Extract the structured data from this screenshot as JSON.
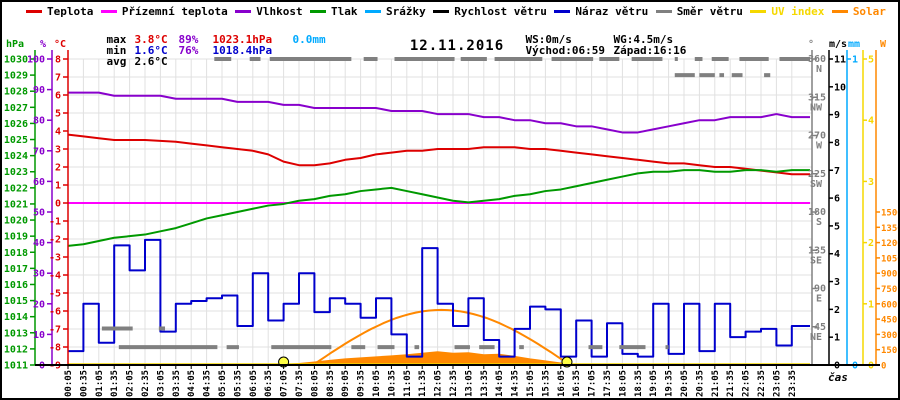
{
  "title": "12.11.2016",
  "xlabel": "čas",
  "palette": {
    "temp": "#dd0000",
    "ground": "#ff00ff",
    "hum": "#8800cc",
    "pres": "#009900",
    "rain": "#00aaff",
    "wind": "#000000",
    "gust": "#0000cc",
    "dir": "#808080",
    "uv": "#f5d800",
    "solar": "#ff8800",
    "black": "#000000",
    "min": "#0000cc",
    "grid": "#e0e0e0",
    "sun_marker": "#ffff44"
  },
  "legend": {
    "items": [
      {
        "label": "Teplota",
        "color": "#dd0000",
        "label_color": "#000000"
      },
      {
        "label": "Přízemní teplota",
        "color": "#ff00ff",
        "label_color": "#000000"
      },
      {
        "label": "Vlhkost",
        "color": "#8800cc",
        "label_color": "#000000"
      },
      {
        "label": "Tlak",
        "color": "#009900",
        "label_color": "#000000"
      },
      {
        "label": "Srážky",
        "color": "#00aaff",
        "label_color": "#000000"
      },
      {
        "label": "Rychlost větru",
        "color": "#000000",
        "label_color": "#000000"
      },
      {
        "label": "Náraz větru",
        "color": "#0000cc",
        "label_color": "#000000"
      },
      {
        "label": "Směr větru",
        "color": "#808080",
        "label_color": "#000000"
      },
      {
        "label": "UV index",
        "color": "#f5d800",
        "label_color": "#f5d800"
      },
      {
        "label": "Solar",
        "color": "#ff8800",
        "label_color": "#ff8800"
      }
    ]
  },
  "stats": {
    "max_label": "max",
    "max_temp": "3.8°C",
    "max_hum": "89%",
    "max_pres": "1023.1hPa",
    "rain_total": "0.0mm",
    "min_label": "min",
    "min_temp": "1.6°C",
    "min_hum": "76%",
    "min_pres": "1018.4hPa",
    "avg_label": "avg",
    "avg_temp": "2.6°C",
    "ws": "WS:0m/s",
    "wg": "WG:4.5m/s",
    "sunrise": "Východ:06:59",
    "sunset": "Západ:16:16"
  },
  "chart_data": {
    "type": "line",
    "title": "12.11.2016",
    "x_axis": {
      "label": "čas",
      "tick_labels": [
        "00:05",
        "00:35",
        "01:05",
        "01:35",
        "02:05",
        "02:35",
        "03:05",
        "03:35",
        "04:05",
        "04:35",
        "05:05",
        "05:35",
        "06:05",
        "06:35",
        "07:05",
        "07:35",
        "08:05",
        "08:35",
        "09:05",
        "09:35",
        "10:05",
        "10:35",
        "11:05",
        "11:35",
        "12:05",
        "12:35",
        "13:05",
        "13:35",
        "14:05",
        "14:35",
        "15:05",
        "15:35",
        "16:05",
        "16:35",
        "17:05",
        "17:35",
        "18:05",
        "18:35",
        "19:05",
        "19:35",
        "20:05",
        "20:35",
        "21:05",
        "21:35",
        "22:05",
        "22:35",
        "23:05",
        "23:35"
      ]
    },
    "axes": {
      "pressure": {
        "label": "hPa",
        "color": "#009900",
        "min": 1011,
        "max": 1030,
        "ticks": [
          1030,
          1029,
          1028,
          1027,
          1026,
          1025,
          1024,
          1023,
          1022,
          1021,
          1020,
          1019,
          1018,
          1017,
          1016,
          1015,
          1014,
          1013,
          1012,
          1011
        ]
      },
      "humidity": {
        "label": "%",
        "color": "#8800cc",
        "min": 0,
        "max": 100,
        "ticks": [
          100,
          90,
          80,
          70,
          60,
          50,
          40,
          30,
          20,
          10,
          0
        ]
      },
      "temperature": {
        "label": "°C",
        "color": "#dd0000",
        "min": -9,
        "max": 8,
        "ticks": [
          8,
          7,
          6,
          5,
          4,
          3,
          2,
          1,
          0,
          -1,
          -2,
          -3,
          -4,
          -5,
          -6,
          -7,
          -8,
          -9
        ]
      },
      "direction": {
        "label": "°",
        "color": "#808080",
        "min": 0,
        "max": 360,
        "ticks": [
          {
            "deg": 360,
            "name": "N"
          },
          {
            "deg": 315,
            "name": "NW"
          },
          {
            "deg": 270,
            "name": "W"
          },
          {
            "deg": 225,
            "name": "SW"
          },
          {
            "deg": 180,
            "name": "S"
          },
          {
            "deg": 135,
            "name": "SE"
          },
          {
            "deg": 90,
            "name": "E"
          },
          {
            "deg": 45,
            "name": "NE"
          }
        ]
      },
      "wind": {
        "label": "m/s",
        "color": "#000000",
        "min": 0,
        "max": 11,
        "ticks": [
          11,
          10,
          9,
          8,
          7,
          6,
          5,
          4,
          3,
          2,
          1,
          0
        ]
      },
      "rain": {
        "label": "mm",
        "color": "#00aaff",
        "min": 0,
        "max": 1,
        "ticks": [
          1,
          0
        ]
      },
      "uv": {
        "label": "UV",
        "color": "#f5d800",
        "min": 0,
        "max": 5,
        "ticks": [
          5,
          4,
          3,
          2,
          1,
          0
        ]
      },
      "solar": {
        "label": "W",
        "color": "#ff8800",
        "min": 0,
        "max": 3000,
        "ticks": [
          1500,
          1350,
          1200,
          1050,
          900,
          750,
          600,
          450,
          300,
          150,
          0
        ]
      }
    },
    "series": [
      {
        "name": "Teplota",
        "unit": "°C",
        "axis": "temp",
        "color": "#dd0000",
        "style": "line",
        "values": [
          3.8,
          3.7,
          3.6,
          3.5,
          3.5,
          3.5,
          3.45,
          3.4,
          3.3,
          3.2,
          3.1,
          3.0,
          2.9,
          2.7,
          2.3,
          2.1,
          2.1,
          2.2,
          2.4,
          2.5,
          2.7,
          2.8,
          2.9,
          2.9,
          3.0,
          3.0,
          3.0,
          3.1,
          3.1,
          3.1,
          3.0,
          3.0,
          2.9,
          2.8,
          2.7,
          2.6,
          2.5,
          2.4,
          2.3,
          2.2,
          2.2,
          2.1,
          2.0,
          2.0,
          1.9,
          1.8,
          1.7,
          1.6
        ]
      },
      {
        "name": "Přízemní teplota",
        "unit": "°C",
        "axis": "temp",
        "color": "#ff00ff",
        "style": "line",
        "values": [
          0,
          0,
          0,
          0,
          0,
          0,
          0,
          0,
          0,
          0,
          0,
          0,
          0,
          0,
          0,
          0,
          0,
          0,
          0,
          0,
          0,
          0,
          0,
          0,
          0,
          0,
          0,
          0,
          0,
          0,
          0,
          0,
          0,
          0,
          0,
          0,
          0,
          0,
          0,
          0,
          0,
          0,
          0,
          0,
          0,
          0,
          0,
          0
        ]
      },
      {
        "name": "Vlhkost",
        "unit": "%",
        "axis": "hum",
        "color": "#8800cc",
        "style": "line",
        "values": [
          89,
          89,
          89,
          88,
          88,
          88,
          88,
          87,
          87,
          87,
          87,
          86,
          86,
          86,
          85,
          85,
          84,
          84,
          84,
          84,
          84,
          83,
          83,
          83,
          82,
          82,
          82,
          81,
          81,
          80,
          80,
          79,
          79,
          78,
          78,
          77,
          76,
          76,
          77,
          78,
          79,
          80,
          80,
          81,
          81,
          81,
          82,
          81
        ]
      },
      {
        "name": "Tlak",
        "unit": "hPa",
        "axis": "pres",
        "color": "#009900",
        "style": "line",
        "values": [
          1018.4,
          1018.5,
          1018.7,
          1018.9,
          1019.0,
          1019.1,
          1019.3,
          1019.5,
          1019.8,
          1020.1,
          1020.3,
          1020.5,
          1020.7,
          1020.9,
          1021.0,
          1021.2,
          1021.3,
          1021.5,
          1021.6,
          1021.8,
          1021.9,
          1022.0,
          1021.8,
          1021.6,
          1021.4,
          1021.2,
          1021.1,
          1021.2,
          1021.3,
          1021.5,
          1021.6,
          1021.8,
          1021.9,
          1022.1,
          1022.3,
          1022.5,
          1022.7,
          1022.9,
          1023.0,
          1023.0,
          1023.1,
          1023.1,
          1023.0,
          1023.0,
          1023.1,
          1023.1,
          1023.0,
          1023.1
        ]
      },
      {
        "name": "Srážky",
        "unit": "mm",
        "axis": "mm",
        "color": "#00aaff",
        "style": "line",
        "values": [
          0,
          0,
          0,
          0,
          0,
          0,
          0,
          0,
          0,
          0,
          0,
          0,
          0,
          0,
          0,
          0,
          0,
          0,
          0,
          0,
          0,
          0,
          0,
          0,
          0,
          0,
          0,
          0,
          0,
          0,
          0,
          0,
          0,
          0,
          0,
          0,
          0,
          0,
          0,
          0,
          0,
          0,
          0,
          0,
          0,
          0,
          0,
          0
        ]
      },
      {
        "name": "Rychlost větru",
        "unit": "m/s",
        "axis": "wind",
        "color": "#000000",
        "style": "line",
        "values": [
          0,
          0,
          0,
          0,
          0,
          0,
          0,
          0,
          0,
          0,
          0,
          0,
          0,
          0,
          0,
          0,
          0,
          0,
          0,
          0,
          0,
          0,
          0,
          0,
          0,
          0,
          0,
          0,
          0,
          0,
          0,
          0,
          0,
          0,
          0,
          0,
          0,
          0,
          0,
          0,
          0,
          0,
          0,
          0,
          0,
          0,
          0,
          0
        ]
      },
      {
        "name": "Náraz větru",
        "unit": "m/s",
        "axis": "wind",
        "color": "#0000cc",
        "style": "step",
        "values": [
          0.5,
          2.2,
          0.8,
          4.3,
          3.4,
          4.5,
          1.2,
          2.2,
          2.3,
          2.4,
          2.5,
          1.4,
          3.3,
          1.6,
          2.2,
          3.3,
          1.9,
          2.4,
          2.2,
          1.7,
          2.4,
          1.1,
          0.3,
          4.2,
          2.2,
          1.4,
          2.4,
          0.9,
          0.3,
          1.3,
          2.1,
          2.0,
          0.3,
          1.6,
          0.3,
          1.5,
          0.4,
          0.3,
          2.2,
          0.4,
          2.2,
          0.5,
          2.2,
          1.0,
          1.2,
          1.3,
          0.7,
          1.4
        ]
      },
      {
        "name": "UV index",
        "unit": "",
        "axis": "uv",
        "color": "#f5d800",
        "style": "line",
        "values": [
          0,
          0,
          0,
          0,
          0,
          0,
          0,
          0,
          0,
          0,
          0,
          0,
          0,
          0,
          0,
          0,
          0,
          0,
          0,
          0,
          0,
          0,
          0,
          0,
          0,
          0,
          0,
          0,
          0,
          0,
          0,
          0,
          0,
          0,
          0,
          0,
          0,
          0,
          0,
          0,
          0,
          0,
          0,
          0,
          0,
          0,
          0,
          0
        ]
      },
      {
        "name": "Solar",
        "unit": "W",
        "axis": "solar",
        "color": "#ff8800",
        "style": "area",
        "values": [
          0,
          0,
          0,
          0,
          0,
          0,
          0,
          0,
          0,
          0,
          0,
          0,
          0,
          0,
          5,
          15,
          30,
          45,
          60,
          70,
          80,
          90,
          100,
          115,
          130,
          115,
          120,
          100,
          105,
          85,
          60,
          40,
          20,
          5,
          0,
          0,
          0,
          0,
          0,
          0,
          0,
          0,
          0,
          0,
          0,
          0,
          0,
          0
        ]
      }
    ],
    "wind_direction": {
      "name": "Směr větru",
      "color": "#808080",
      "segments": [
        {
          "deg": 360,
          "from": 9.5,
          "to": 10.6
        },
        {
          "deg": 360,
          "from": 11.8,
          "to": 12.5
        },
        {
          "deg": 360,
          "from": 13.1,
          "to": 18.4
        },
        {
          "deg": 360,
          "from": 19.2,
          "to": 20.1
        },
        {
          "deg": 360,
          "from": 21.2,
          "to": 25.1
        },
        {
          "deg": 360,
          "from": 25.5,
          "to": 27.2
        },
        {
          "deg": 360,
          "from": 27.7,
          "to": 30.8
        },
        {
          "deg": 360,
          "from": 31.4,
          "to": 34.1
        },
        {
          "deg": 360,
          "from": 34.5,
          "to": 35.8
        },
        {
          "deg": 360,
          "from": 36.6,
          "to": 38.6
        },
        {
          "deg": 360,
          "from": 39.4,
          "to": 39.6
        },
        {
          "deg": 360,
          "from": 40.7,
          "to": 41.2
        },
        {
          "deg": 360,
          "from": 41.8,
          "to": 42.9
        },
        {
          "deg": 360,
          "from": 43.6,
          "to": 45.5
        },
        {
          "deg": 360,
          "from": 46.2,
          "to": 48.2
        },
        {
          "deg": 341,
          "from": 39.4,
          "to": 40.7
        },
        {
          "deg": 341,
          "from": 41.0,
          "to": 42.0
        },
        {
          "deg": 341,
          "from": 42.3,
          "to": 42.6
        },
        {
          "deg": 341,
          "from": 43.1,
          "to": 43.8
        },
        {
          "deg": 341,
          "from": 45.2,
          "to": 45.6
        },
        {
          "deg": 43,
          "from": 2.2,
          "to": 4.2
        },
        {
          "deg": 43,
          "from": 5.9,
          "to": 6.3
        },
        {
          "deg": 21,
          "from": 3.3,
          "to": 9.7
        },
        {
          "deg": 21,
          "from": 10.3,
          "to": 11.1
        },
        {
          "deg": 21,
          "from": 13.2,
          "to": 17.1
        },
        {
          "deg": 21,
          "from": 18.4,
          "to": 19.3
        },
        {
          "deg": 21,
          "from": 20.1,
          "to": 21.2
        },
        {
          "deg": 21,
          "from": 22.5,
          "to": 22.8
        },
        {
          "deg": 21,
          "from": 25.1,
          "to": 26.1
        },
        {
          "deg": 21,
          "from": 26.7,
          "to": 27.7
        },
        {
          "deg": 21,
          "from": 29.3,
          "to": 29.6
        },
        {
          "deg": 21,
          "from": 33.8,
          "to": 34.7
        },
        {
          "deg": 21,
          "from": 35.8,
          "to": 37.5
        },
        {
          "deg": 21,
          "from": 38.8,
          "to": 39.0
        }
      ]
    },
    "solar_max_arc": {
      "color": "#ff8800",
      "from_idx": 15.9,
      "to_idx": 32.6,
      "peak_w": 540
    },
    "sun_markers": {
      "color": "#ffff44",
      "sunrise_idx": 14.0,
      "sunset_idx": 32.4,
      "sunrise": "06:59",
      "sunset": "16:16"
    }
  }
}
